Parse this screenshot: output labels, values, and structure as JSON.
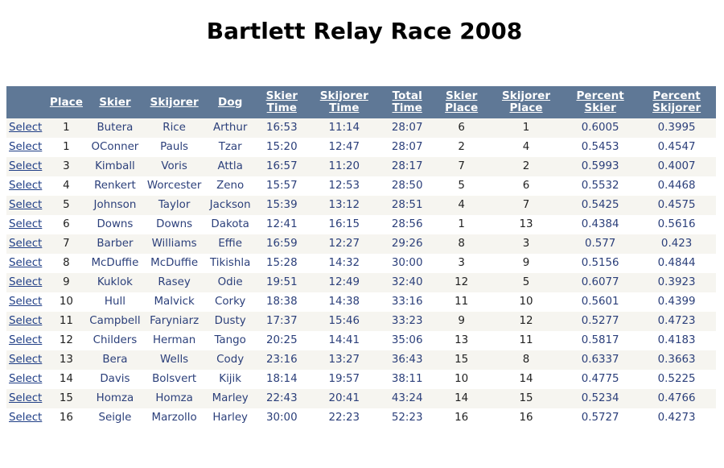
{
  "title": "Bartlett Relay Race 2008",
  "colors": {
    "header_bg": "#5f7896",
    "row_alt": "#f6f5f0",
    "link": "#1f3e86"
  },
  "columns": [
    "Place",
    "Skier",
    "Skijorer",
    "Dog",
    "Skier Time",
    "Skijorer Time",
    "Total Time",
    "Skier Place",
    "Skijorer Place",
    "Percent Skier",
    "Percent Skijorer"
  ],
  "select_label": "Select",
  "rows": [
    [
      "1",
      "Butera",
      "Rice",
      "Arthur",
      "16:53",
      "11:14",
      "28:07",
      "6",
      "1",
      "0.6005",
      "0.3995"
    ],
    [
      "1",
      "OConner",
      "Pauls",
      "Tzar",
      "15:20",
      "12:47",
      "28:07",
      "2",
      "4",
      "0.5453",
      "0.4547"
    ],
    [
      "3",
      "Kimball",
      "Voris",
      "Attla",
      "16:57",
      "11:20",
      "28:17",
      "7",
      "2",
      "0.5993",
      "0.4007"
    ],
    [
      "4",
      "Renkert",
      "Worcester",
      "Zeno",
      "15:57",
      "12:53",
      "28:50",
      "5",
      "6",
      "0.5532",
      "0.4468"
    ],
    [
      "5",
      "Johnson",
      "Taylor",
      "Jackson",
      "15:39",
      "13:12",
      "28:51",
      "4",
      "7",
      "0.5425",
      "0.4575"
    ],
    [
      "6",
      "Downs",
      "Downs",
      "Dakota",
      "12:41",
      "16:15",
      "28:56",
      "1",
      "13",
      "0.4384",
      "0.5616"
    ],
    [
      "7",
      "Barber",
      "Williams",
      "Effie",
      "16:59",
      "12:27",
      "29:26",
      "8",
      "3",
      "0.577",
      "0.423"
    ],
    [
      "8",
      "McDuffie",
      "McDuffie",
      "Tikishla",
      "15:28",
      "14:32",
      "30:00",
      "3",
      "9",
      "0.5156",
      "0.4844"
    ],
    [
      "9",
      "Kuklok",
      "Rasey",
      "Odie",
      "19:51",
      "12:49",
      "32:40",
      "12",
      "5",
      "0.6077",
      "0.3923"
    ],
    [
      "10",
      "Hull",
      "Malvick",
      "Corky",
      "18:38",
      "14:38",
      "33:16",
      "11",
      "10",
      "0.5601",
      "0.4399"
    ],
    [
      "11",
      "Campbell",
      "Faryniarz",
      "Dusty",
      "17:37",
      "15:46",
      "33:23",
      "9",
      "12",
      "0.5277",
      "0.4723"
    ],
    [
      "12",
      "Childers",
      "Herman",
      "Tango",
      "20:25",
      "14:41",
      "35:06",
      "13",
      "11",
      "0.5817",
      "0.4183"
    ],
    [
      "13",
      "Bera",
      "Wells",
      "Cody",
      "23:16",
      "13:27",
      "36:43",
      "15",
      "8",
      "0.6337",
      "0.3663"
    ],
    [
      "14",
      "Davis",
      "Bolsvert",
      "Kijik",
      "18:14",
      "19:57",
      "38:11",
      "10",
      "14",
      "0.4775",
      "0.5225"
    ],
    [
      "15",
      "Homza",
      "Homza",
      "Marley",
      "22:43",
      "20:41",
      "43:24",
      "14",
      "15",
      "0.5234",
      "0.4766"
    ],
    [
      "16",
      "Seigle",
      "Marzollo",
      "Harley",
      "30:00",
      "22:23",
      "52:23",
      "16",
      "16",
      "0.5727",
      "0.4273"
    ]
  ]
}
